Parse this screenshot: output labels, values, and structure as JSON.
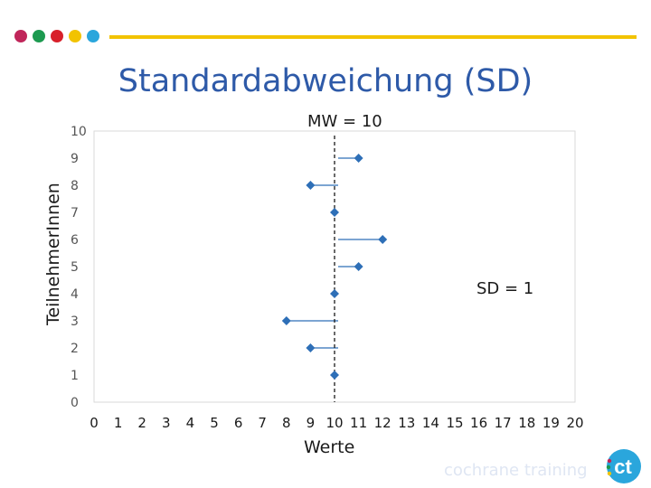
{
  "slide": {
    "title": "Standardabweichung (SD)",
    "brand_text": "cochrane training",
    "logo_text": "ct",
    "dot_colors": [
      "#c0265a",
      "#1d9a50",
      "#d8202a",
      "#f2c300",
      "#2aa6dc"
    ],
    "accent_line_color": "#f2c300",
    "title_color": "#2e5aa8"
  },
  "chart_data": {
    "type": "scatter",
    "title": "",
    "xlabel": "Werte",
    "ylabel": "TeilnehmerInnen",
    "xlim": [
      0,
      20
    ],
    "ylim": [
      0,
      10
    ],
    "x_ticks": [
      "0",
      "1",
      "2",
      "3",
      "4",
      "5",
      "6",
      "7",
      "8",
      "9",
      "10",
      "11",
      "12",
      "13",
      "14",
      "15",
      "16",
      "17",
      "18",
      "19",
      "20"
    ],
    "y_ticks": [
      "0",
      "1",
      "2",
      "3",
      "4",
      "5",
      "6",
      "7",
      "8",
      "9",
      "10"
    ],
    "grid": false,
    "mean_line": {
      "x": 10,
      "label": "MW = 10",
      "style": "dashed"
    },
    "points": [
      {
        "x": 10,
        "y": 1
      },
      {
        "x": 9,
        "y": 2
      },
      {
        "x": 8,
        "y": 3
      },
      {
        "x": 10,
        "y": 4
      },
      {
        "x": 11,
        "y": 5
      },
      {
        "x": 12,
        "y": 6
      },
      {
        "x": 10,
        "y": 7
      },
      {
        "x": 9,
        "y": 8
      },
      {
        "x": 11,
        "y": 9
      }
    ],
    "annotation": "SD = 1",
    "marker_color": "#2e6fb7"
  }
}
